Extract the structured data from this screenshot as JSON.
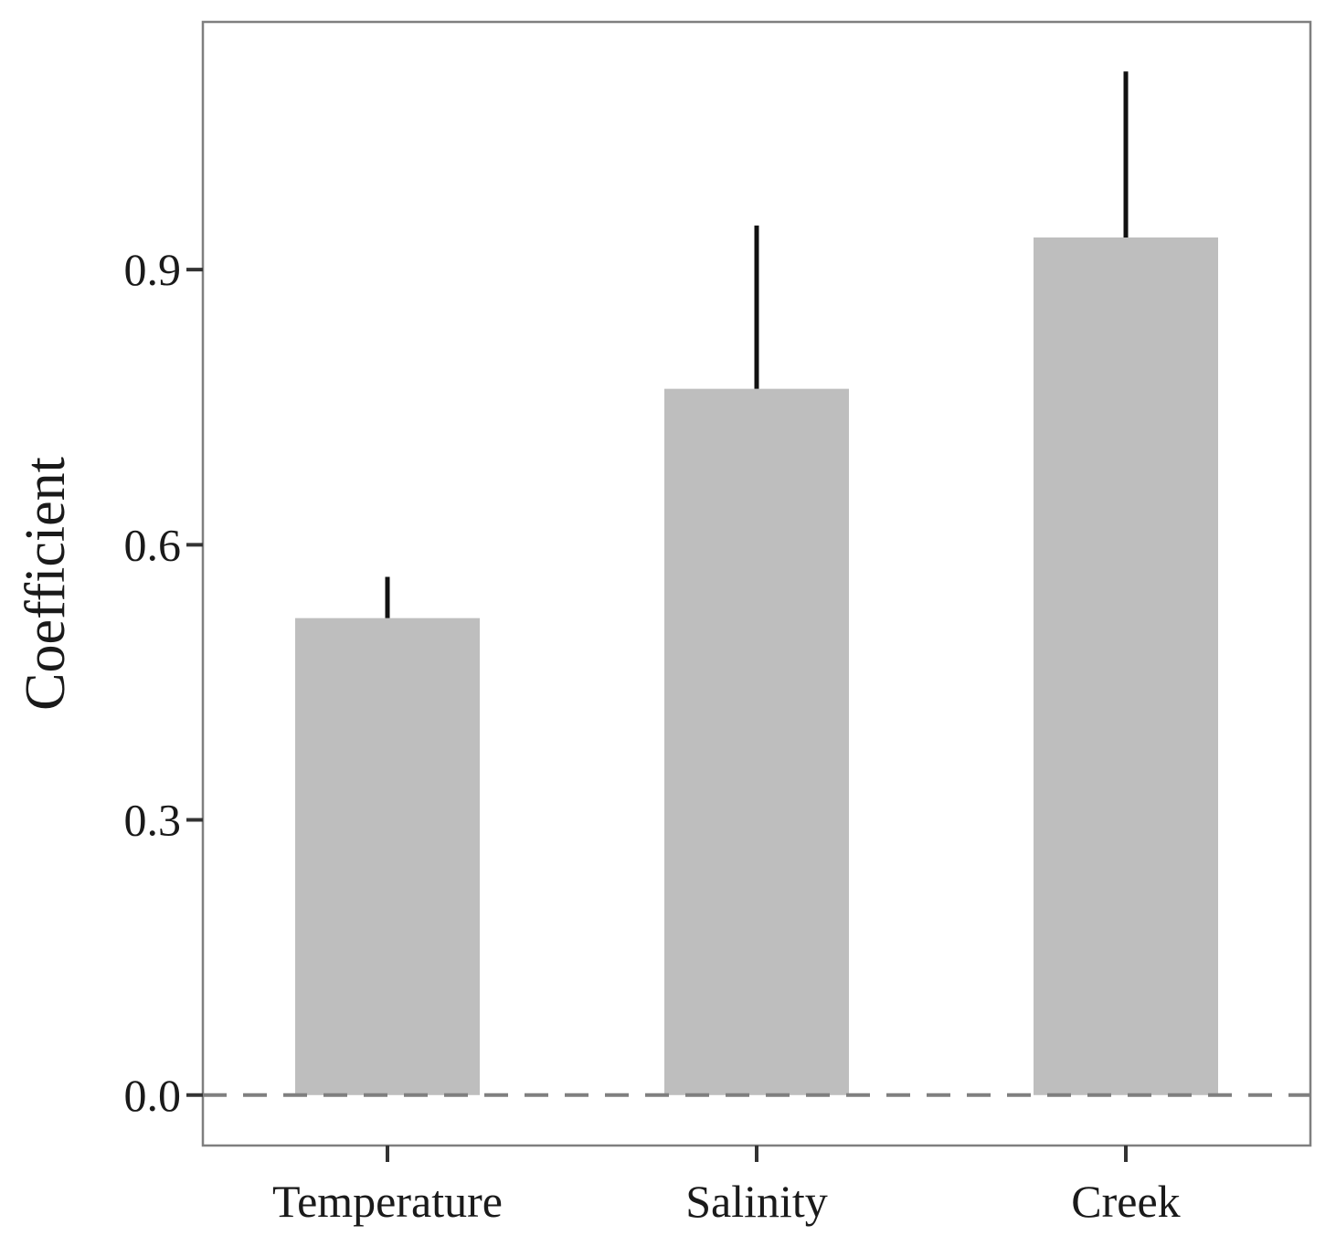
{
  "chart_data": {
    "type": "bar",
    "title": "",
    "xlabel": "",
    "ylabel": "Coefficient",
    "categories": [
      "Temperature",
      "Salinity",
      "Creek"
    ],
    "values": [
      0.52,
      0.77,
      0.935
    ],
    "error_upper": [
      0.565,
      0.948,
      1.116
    ],
    "ylim": [
      -0.055,
      1.17
    ],
    "yticks": [
      0.0,
      0.3,
      0.6,
      0.9
    ],
    "ytick_labels": [
      "0.0",
      "0.3",
      "0.6",
      "0.9"
    ],
    "reference_line": 0.0,
    "grid": false,
    "colors": {
      "bar": "#bebebe",
      "error_bar": "#111111",
      "reference_line": "#7f7f7f",
      "panel_border": "#7f7f7f"
    }
  }
}
